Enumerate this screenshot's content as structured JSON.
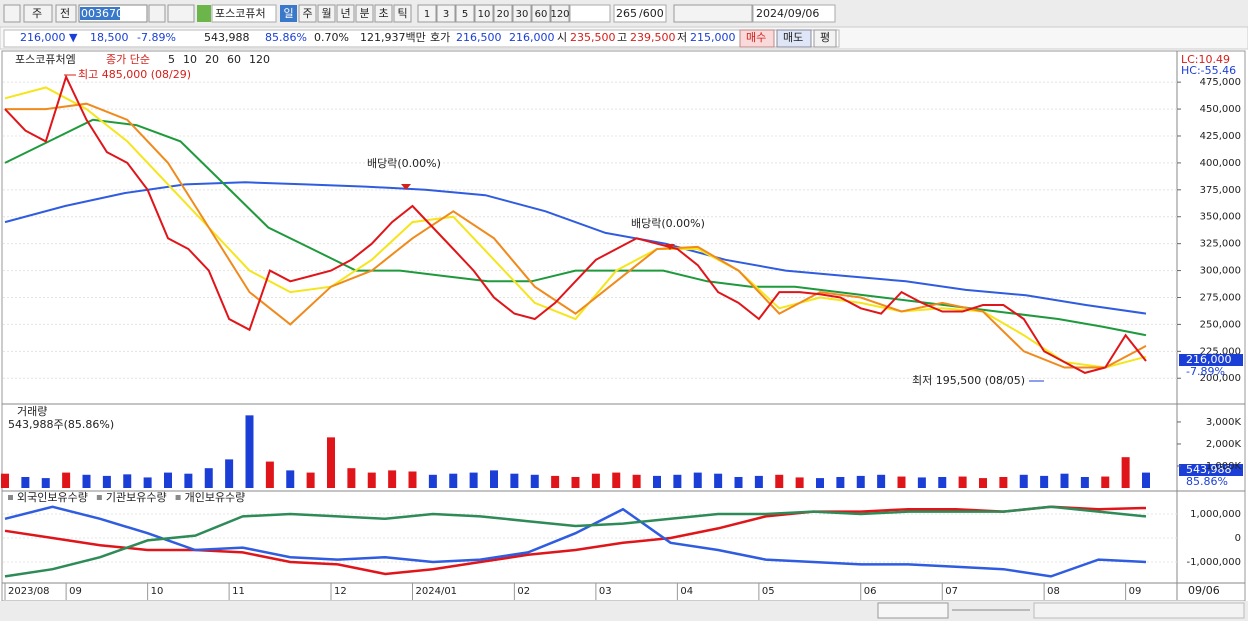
{
  "toolbar": {
    "period": "주",
    "prev": "전",
    "code": "003670",
    "name": "포스코퓨처",
    "units": [
      "일",
      "주",
      "월",
      "년",
      "분",
      "초",
      "틱"
    ],
    "counts": [
      "1",
      "3",
      "5",
      "10",
      "20",
      "30",
      "60",
      "120"
    ],
    "bars": "265",
    "max": "/600",
    "date": "2024/09/06"
  },
  "info": {
    "price": "216,000 ▼",
    "change": "18,500",
    "rate": "-7.89%",
    "volume": "543,988",
    "vol_rate": "85.86%",
    "turnover": "0.70%",
    "amount": "121,937백만",
    "quote_label": "호가",
    "ask": "216,500",
    "bid": "216,000",
    "open_label": "시",
    "open": "235,500",
    "high_label": "고",
    "high": "239,500",
    "low_label": "저",
    "low": "215,000",
    "buy": "매수",
    "sell": "매도",
    "eval": "평"
  },
  "price_panel": {
    "title": "포스코퓨처엠",
    "ma_label": "종가 단순",
    "lc": "LC:10.49",
    "hc": "HC:-55.46",
    "high_note": "최고 485,000 (08/29)",
    "low_note": "최저 195,500 (08/05)",
    "div_notes": [
      "배당락(0.00%)",
      "배당락(0.00%)"
    ],
    "current": "216,000",
    "current_rate": "-7.89%",
    "ylim": [
      177000,
      503000
    ],
    "yticks": [
      {
        "value": 475000,
        "label": "475,000"
      },
      {
        "value": 450000,
        "label": "450,000"
      },
      {
        "value": 425000,
        "label": "425,000"
      },
      {
        "value": 400000,
        "label": "400,000"
      },
      {
        "value": 375000,
        "label": "375,000"
      },
      {
        "value": 350000,
        "label": "350,000"
      },
      {
        "value": 325000,
        "label": "325,000"
      },
      {
        "value": 300000,
        "label": "300,000"
      },
      {
        "value": 275000,
        "label": "275,000"
      },
      {
        "value": 250000,
        "label": "250,000"
      },
      {
        "value": 225000,
        "label": "225,000"
      },
      {
        "value": 200000,
        "label": "200,000"
      }
    ],
    "series": [
      {
        "name": "5",
        "color": "#e0151a",
        "values": [
          450000,
          430000,
          420000,
          480000,
          440000,
          410000,
          400000,
          375000,
          330000,
          320000,
          300000,
          255000,
          245000,
          300000,
          290000,
          295000,
          300000,
          310000,
          325000,
          345000,
          360000,
          340000,
          320000,
          300000,
          275000,
          260000,
          255000,
          270000,
          290000,
          310000,
          320000,
          330000,
          325000,
          320000,
          305000,
          280000,
          270000,
          255000,
          280000,
          280000,
          278000,
          275000,
          265000,
          260000,
          280000,
          270000,
          262000,
          262000,
          268000,
          268000,
          255000,
          225000,
          215000,
          205000,
          210000,
          240000,
          216000
        ]
      },
      {
        "name": "10",
        "color": "#f08a1c",
        "values": [
          450000,
          450000,
          455000,
          440000,
          400000,
          340000,
          280000,
          250000,
          285000,
          300000,
          330000,
          355000,
          330000,
          285000,
          260000,
          290000,
          320000,
          322000,
          300000,
          260000,
          280000,
          275000,
          262000,
          270000,
          262000,
          225000,
          210000,
          210000,
          230000
        ]
      },
      {
        "name": "20",
        "color": "#f5e51b",
        "values": [
          460000,
          470000,
          450000,
          420000,
          380000,
          340000,
          300000,
          280000,
          285000,
          310000,
          345000,
          350000,
          310000,
          270000,
          255000,
          300000,
          320000,
          320000,
          300000,
          265000,
          275000,
          270000,
          262000,
          265000,
          262000,
          240000,
          215000,
          210000,
          220000
        ]
      },
      {
        "name": "60",
        "color": "#1e9a3c",
        "values": [
          400000,
          420000,
          440000,
          435000,
          420000,
          380000,
          340000,
          320000,
          300000,
          300000,
          295000,
          290000,
          290000,
          300000,
          300000,
          300000,
          290000,
          285000,
          285000,
          280000,
          275000,
          270000,
          265000,
          260000,
          255000,
          248000,
          240000
        ]
      },
      {
        "name": "120",
        "color": "#2f5ce0",
        "values": [
          345000,
          360000,
          372000,
          380000,
          382000,
          380000,
          378000,
          375000,
          370000,
          355000,
          335000,
          325000,
          310000,
          300000,
          295000,
          290000,
          282000,
          277000,
          268000,
          260000
        ]
      }
    ]
  },
  "volume_panel": {
    "title": "거래량",
    "summary": "543,988주(85.86%)",
    "current": "543,988",
    "current_rate": "85.86%",
    "up_color": "#e0151a",
    "down_color": "#1b3fd6",
    "ylim": [
      0,
      3770000
    ],
    "yticks": [
      {
        "value": 3000000,
        "label": "3,000K"
      },
      {
        "value": 2000000,
        "label": "2,000K"
      },
      {
        "value": 1000000,
        "label": "1,000K"
      }
    ],
    "values": [
      650000,
      500000,
      450000,
      700000,
      600000,
      550000,
      620000,
      480000,
      700000,
      650000,
      900000,
      1300000,
      3300000,
      1200000,
      800000,
      700000,
      2300000,
      900000,
      700000,
      800000,
      750000,
      600000,
      650000,
      700000,
      800000,
      650000,
      600000,
      550000,
      500000,
      650000,
      700000,
      600000,
      550000,
      600000,
      700000,
      650000,
      500000,
      550000,
      600000,
      480000,
      450000,
      500000,
      550000,
      600000,
      520000,
      480000,
      500000,
      520000,
      450000,
      500000,
      600000,
      550000,
      650000,
      500000,
      520000,
      1400000,
      700000
    ]
  },
  "investor_panel": {
    "ylim": [
      -1833000,
      1917000
    ],
    "yticks": [
      {
        "value": 1000000,
        "label": "1,000,000"
      },
      0,
      {
        "value": -1000000,
        "label": "-1,000,000"
      }
    ],
    "series": [
      {
        "name": "외국인보유수량",
        "color": "#e0151a",
        "values": [
          300000,
          0,
          -300000,
          -500000,
          -500000,
          -600000,
          -1000000,
          -1100000,
          -1500000,
          -1300000,
          -1000000,
          -700000,
          -500000,
          -200000,
          0,
          400000,
          900000,
          1100000,
          1100000,
          1200000,
          1200000,
          1100000,
          1300000,
          1200000,
          1250000
        ]
      },
      {
        "name": "기관보유수량",
        "color": "#2f5ce0",
        "values": [
          800000,
          1300000,
          800000,
          200000,
          -500000,
          -400000,
          -800000,
          -900000,
          -800000,
          -1000000,
          -900000,
          -600000,
          200000,
          1200000,
          -200000,
          -500000,
          -900000,
          -1000000,
          -1100000,
          -1100000,
          -1200000,
          -1300000,
          -1600000,
          -900000,
          -1000000
        ]
      },
      {
        "name": "개인보유수량",
        "color": "#2e8b57",
        "values": [
          -1600000,
          -1300000,
          -800000,
          -100000,
          100000,
          900000,
          1000000,
          900000,
          800000,
          1000000,
          900000,
          700000,
          500000,
          600000,
          800000,
          1000000,
          1000000,
          1100000,
          1000000,
          1100000,
          1100000,
          1100000,
          1300000,
          1100000,
          900000
        ]
      }
    ]
  },
  "dates": [
    "2023/08",
    null,
    null,
    "09",
    null,
    null,
    null,
    "10",
    null,
    null,
    null,
    "11",
    null,
    null,
    null,
    null,
    "12",
    null,
    null,
    null,
    "2024/01",
    null,
    null,
    null,
    null,
    "02",
    null,
    null,
    null,
    "03",
    null,
    null,
    null,
    "04",
    null,
    null,
    null,
    "05",
    null,
    null,
    null,
    null,
    "06",
    null,
    null,
    null,
    "07",
    null,
    null,
    null,
    null,
    "08",
    null,
    null,
    null,
    "09",
    null
  ],
  "last_date": "09/06"
}
